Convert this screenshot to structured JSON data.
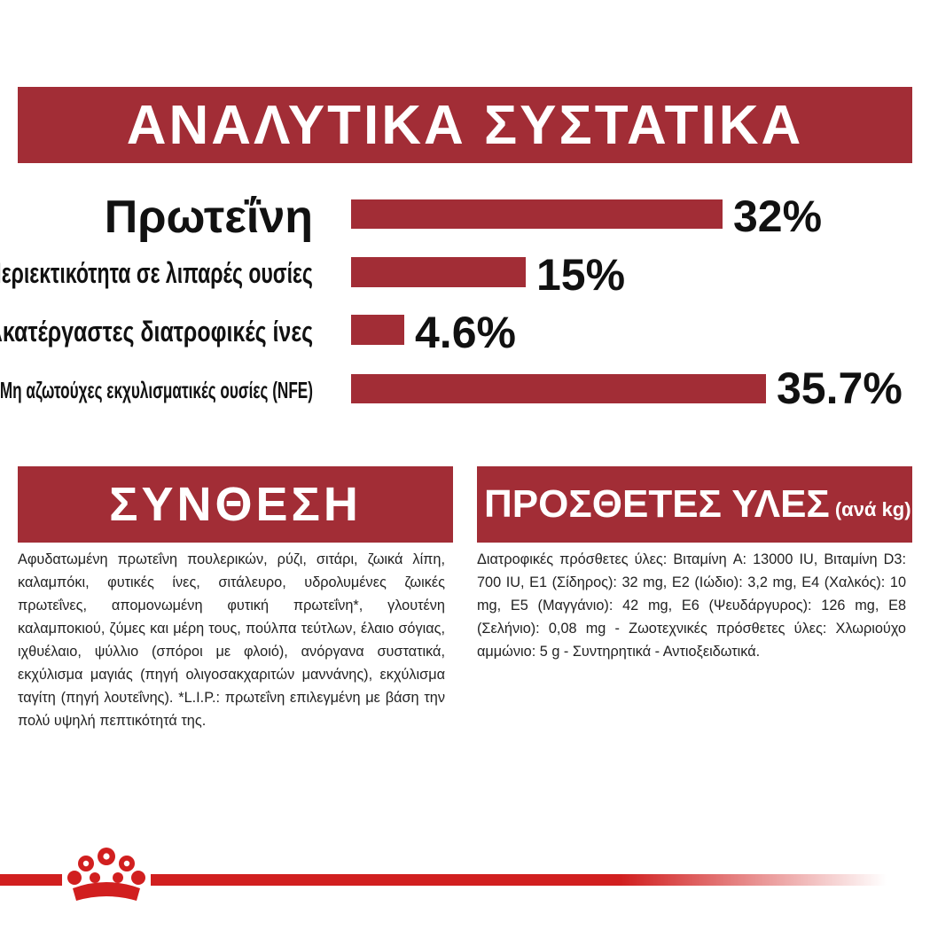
{
  "analysis": {
    "title": "ΑΝΑΛΥΤΙΚΑ ΣΥΣΤΑΤΙΚΑ",
    "rows": [
      {
        "label": "Πρωτεΐνη",
        "value_text": "32%",
        "value": 32
      },
      {
        "label": "Περιεκτικότητα σε λιπαρές ουσίες",
        "value_text": "15%",
        "value": 15
      },
      {
        "label": "Ακατέργαστες διατροφικές ίνες",
        "value_text": "4.6%",
        "value": 4.6
      },
      {
        "label": "Μη αζωτούχες εκχυλισματικές ουσίες (NFE)",
        "value_text": "35.7%",
        "value": 35.7
      }
    ]
  },
  "composition": {
    "title": "ΣΥΝΘΕΣΗ",
    "text": "Αφυδατωμένη πρωτεΐνη πουλερικών, ρύζι, σιτάρι, ζωικά λίπη, καλαμπόκι, φυτικές ίνες, σιτάλευρο, υδρολυμένες ζωικές πρωτεΐνες, απομονωμένη φυτική πρωτεΐνη*, γλουτένη καλαμποκιού, ζύμες και μέρη τους, πούλπα τεύτλων, έλαιο σόγιας, ιχθυέλαιο, ψύλλιο (σπόροι με φλοιό), ανόργανα συστατικά, εκχύλισμα μαγιάς (πηγή ολιγοσακχαριτών μαννάνης), εκχύλισμα ταγίτη (πηγή λουτεΐνης). *L.I.P.: πρωτεΐνη επιλεγμένη με βάση την πολύ υψηλή πεπτικότητά της."
  },
  "additives": {
    "title": "ΠΡΟΣΘΕΤΕΣ ΥΛΕΣ",
    "unit": "(ανά kg)",
    "text": "Διατροφικές πρόσθετες ύλες: Βιταμίνη A: 13000 IU, Βιταμίνη D3: 700 IU, E1 (Σίδηρος): 32 mg, E2 (Ιώδιο): 3,2 mg, E4 (Χαλκός): 10 mg, E5 (Μαγγάνιο): 42 mg, E6 (Ψευδάργυρος): 126 mg, E8 (Σελήνιο): 0,08 mg - Ζωοτεχνικές πρόσθετες ύλες: Χλωριούχο αμμώνιο: 5 g - Συντηρητικά - Αντιοξειδωτικά."
  },
  "colors": {
    "accent": "#a22d36",
    "footer": "#d11f1f"
  },
  "icons": {
    "logo": "royal-canin-crown-logo-icon"
  }
}
